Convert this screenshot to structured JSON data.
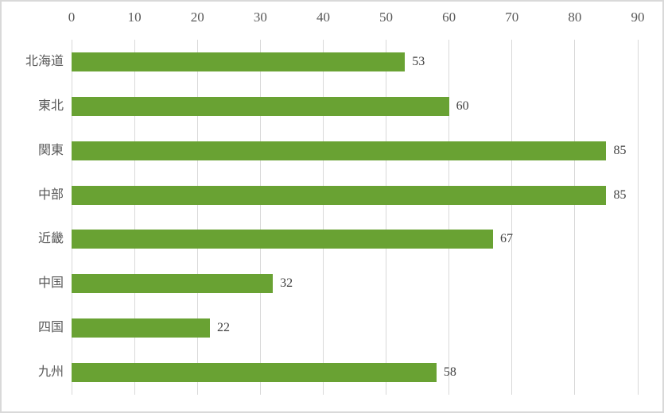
{
  "chart_data": {
    "type": "bar",
    "orientation": "horizontal",
    "title": "",
    "xlabel": "",
    "ylabel": "",
    "categories": [
      "北海道",
      "東北",
      "関東",
      "中部",
      "近畿",
      "中国",
      "四国",
      "九州"
    ],
    "values": [
      53,
      60,
      85,
      85,
      67,
      32,
      22,
      58
    ],
    "data_labels": [
      "53",
      "60",
      "85",
      "85",
      "67",
      "32",
      "22",
      "58"
    ],
    "xlim": [
      0,
      90
    ],
    "xticks": [
      0,
      10,
      20,
      30,
      40,
      50,
      60,
      70,
      80,
      90
    ],
    "xtick_labels": [
      "0",
      "10",
      "20",
      "30",
      "40",
      "50",
      "60",
      "70",
      "80",
      "90"
    ],
    "axis_position": "top",
    "grid": true,
    "legend": false,
    "colors": {
      "bar_fill": "#69a233",
      "gridline": "#d9d9d9",
      "axis_text": "#595959",
      "category_text": "#595959",
      "value_text": "#404040",
      "chart_border": "#d9d9d9",
      "background": "#ffffff"
    }
  }
}
